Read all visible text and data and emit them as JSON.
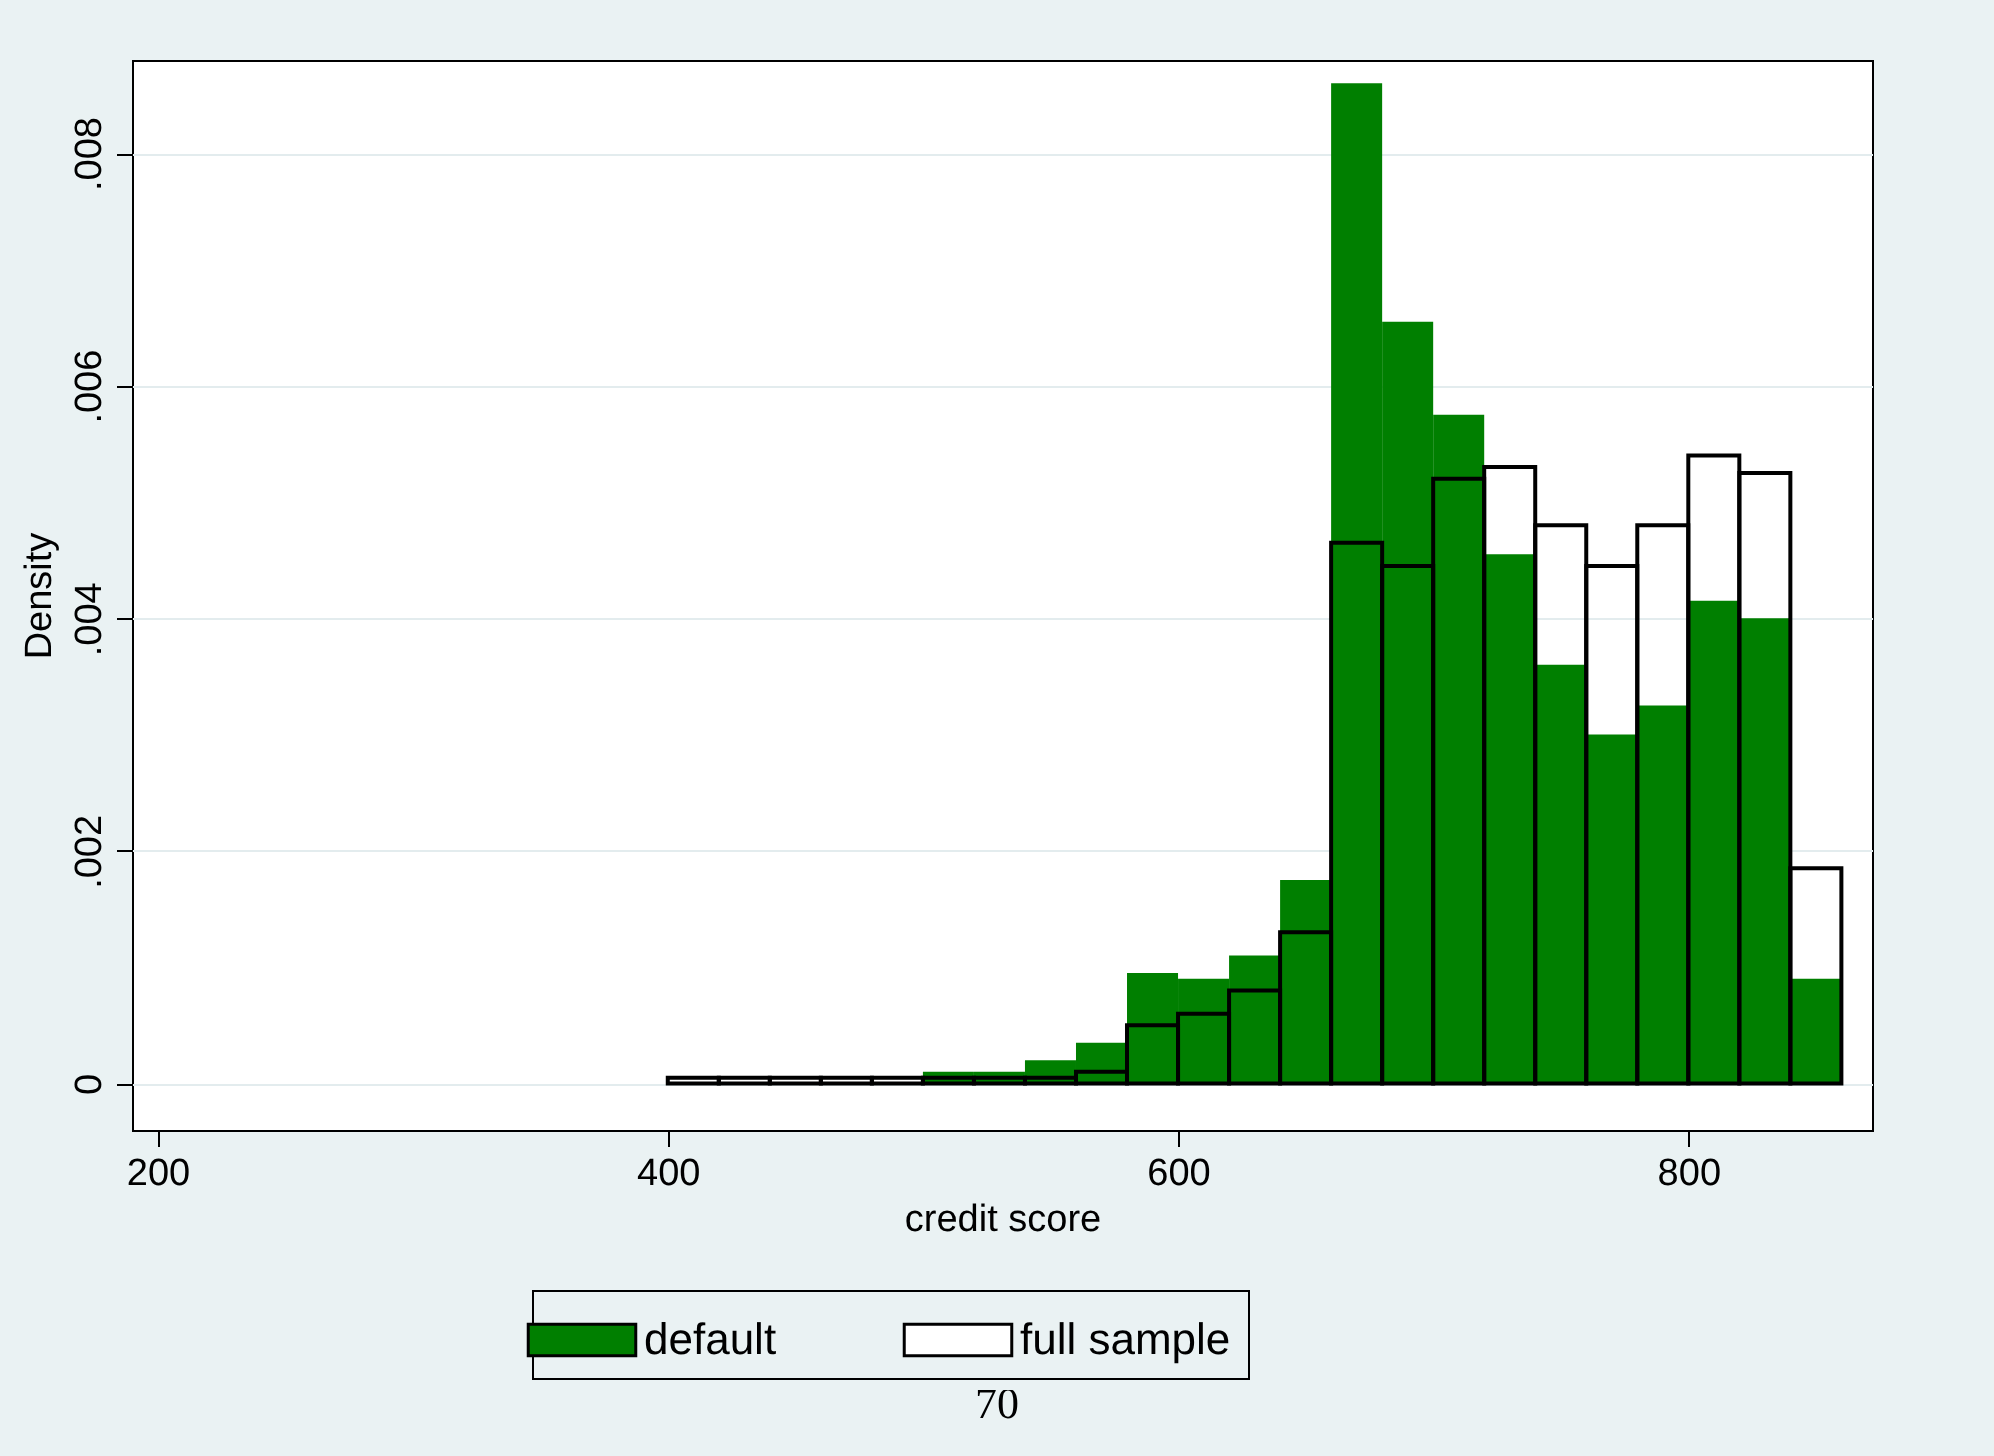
{
  "chart_data": {
    "type": "histogram",
    "xlabel": "credit score",
    "ylabel": "Density",
    "bins": [
      400,
      420,
      440,
      460,
      480,
      500,
      520,
      540,
      560,
      580,
      600,
      620,
      640,
      660,
      680,
      700,
      720,
      740,
      760,
      780,
      800,
      820,
      840,
      860
    ],
    "series": [
      {
        "name": "default",
        "color": "#007f00",
        "values": [
          0,
          0,
          0,
          0,
          0,
          0.0001,
          0.0001,
          0.0002,
          0.00035,
          0.00095,
          0.0009,
          0.0011,
          0.00175,
          0.0086,
          0.00655,
          0.00575,
          0.00455,
          0.0036,
          0.003,
          0.00325,
          0.00415,
          0.004,
          0.0009
        ]
      },
      {
        "name": "full sample",
        "color": "#000000",
        "values": [
          5e-05,
          5e-05,
          5e-05,
          5e-05,
          5e-05,
          5e-05,
          5e-05,
          5e-05,
          0.0001,
          0.0005,
          0.0006,
          0.0008,
          0.0013,
          0.00465,
          0.00445,
          0.0052,
          0.0053,
          0.0048,
          0.00445,
          0.0048,
          0.0054,
          0.00525,
          0.00185
        ]
      }
    ],
    "xlim": [
      190,
      872
    ],
    "xticks": [
      200,
      400,
      600,
      800
    ],
    "ylim": [
      -0.0004,
      0.0088
    ],
    "yticks": [
      0,
      {
        "value": 0.002,
        "label": ".002"
      },
      {
        "value": 0.004,
        "label": ".004"
      },
      {
        "value": 0.006,
        "label": ".006"
      },
      {
        "value": 0.008,
        "label": ".008"
      }
    ],
    "grid": "y",
    "legend": "bottom",
    "annotations": [
      "70"
    ]
  }
}
